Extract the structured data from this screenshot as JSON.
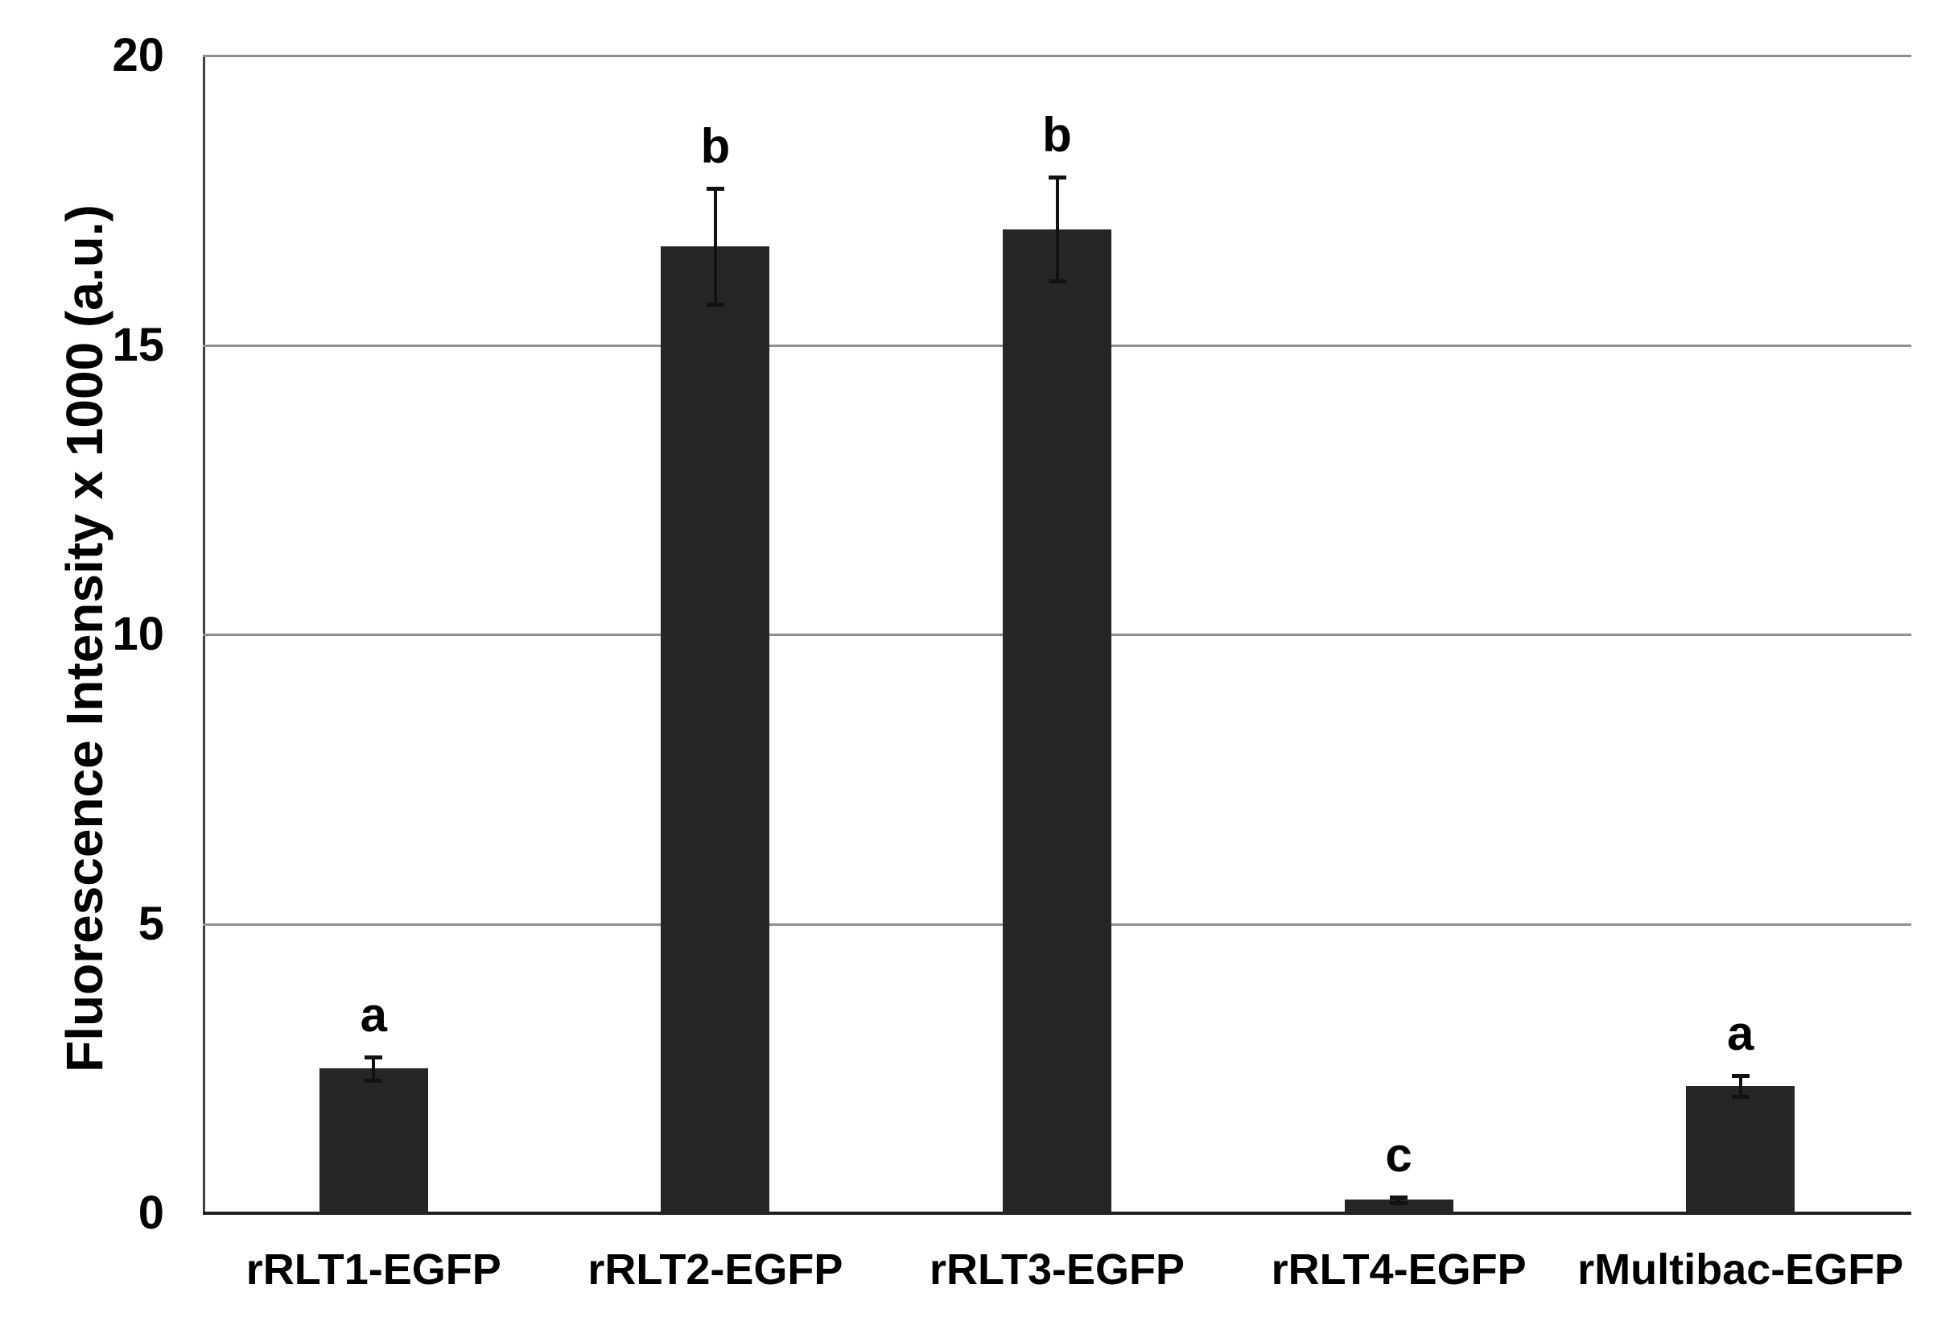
{
  "chart_data": {
    "type": "bar",
    "title": "",
    "xlabel": "",
    "ylabel": "Fluorescence Intensity x 1000 (a.u.)",
    "categories": [
      "rRLT1-EGFP",
      "rRLT2-EGFP",
      "rRLT3-EGFP",
      "rRLT4-EGFP",
      "rMultibac-EGFP"
    ],
    "values": [
      2.5,
      16.7,
      17.0,
      0.23,
      2.2
    ],
    "error_bars": [
      0.2,
      1.0,
      0.9,
      0.05,
      0.18
    ],
    "sig_letters": [
      "a",
      "b",
      "b",
      "c",
      "a"
    ],
    "yticks": [
      0,
      5,
      10,
      15,
      20
    ],
    "ylim": [
      0,
      20
    ],
    "grid": true,
    "legend": "none",
    "bar_color": "#262626",
    "gridline_color": "#8f8f8f",
    "axis_color": "#404040",
    "text_color": "#000000"
  }
}
